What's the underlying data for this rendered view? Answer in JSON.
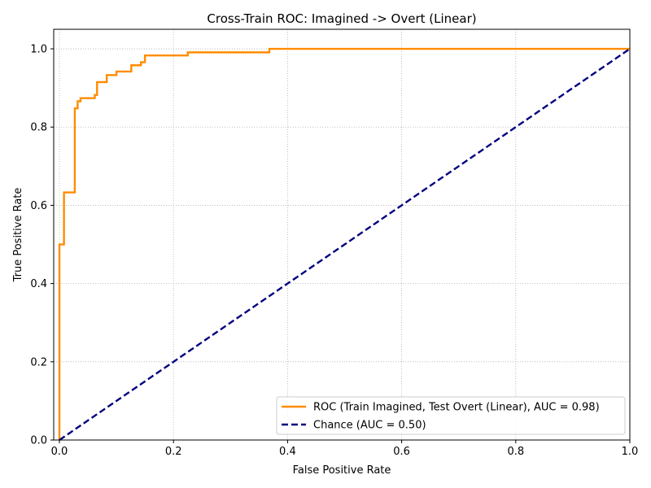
{
  "chart_data": {
    "type": "line",
    "title": "Cross-Train ROC: Imagined -> Overt (Linear)",
    "xlabel": "False Positive Rate",
    "ylabel": "True Positive Rate",
    "xlim": [
      -0.01,
      1.0
    ],
    "ylim": [
      0.0,
      1.05
    ],
    "xticks": [
      0.0,
      0.2,
      0.4,
      0.6,
      0.8,
      1.0
    ],
    "yticks": [
      0.0,
      0.2,
      0.4,
      0.6,
      0.8,
      1.0
    ],
    "xtick_labels": [
      "0.0",
      "0.2",
      "0.4",
      "0.6",
      "0.8",
      "1.0"
    ],
    "ytick_labels": [
      "0.0",
      "0.2",
      "0.4",
      "0.6",
      "0.8",
      "1.0"
    ],
    "grid": true,
    "legend_position": "lower-right",
    "series": [
      {
        "name": "ROC (Train Imagined, Test Overt (Linear), AUC = 0.98)",
        "color": "#ff8c00",
        "style": "solid",
        "x": [
          0.0,
          0.0,
          0.008,
          0.008,
          0.027,
          0.027,
          0.032,
          0.032,
          0.037,
          0.037,
          0.045,
          0.045,
          0.062,
          0.062,
          0.066,
          0.066,
          0.083,
          0.083,
          0.1,
          0.1,
          0.126,
          0.126,
          0.143,
          0.143,
          0.15,
          0.15,
          0.225,
          0.225,
          0.368,
          0.368,
          1.0
        ],
        "y": [
          0.0,
          0.5,
          0.5,
          0.633,
          0.633,
          0.848,
          0.848,
          0.866,
          0.866,
          0.874,
          0.874,
          0.874,
          0.874,
          0.882,
          0.882,
          0.915,
          0.915,
          0.933,
          0.933,
          0.942,
          0.942,
          0.958,
          0.958,
          0.966,
          0.966,
          0.983,
          0.983,
          0.991,
          0.991,
          1.0,
          1.0
        ]
      },
      {
        "name": "Chance (AUC = 0.50)",
        "color": "#000080",
        "style": "dashed",
        "x": [
          0.0,
          1.0
        ],
        "y": [
          0.0,
          1.0
        ]
      }
    ]
  }
}
